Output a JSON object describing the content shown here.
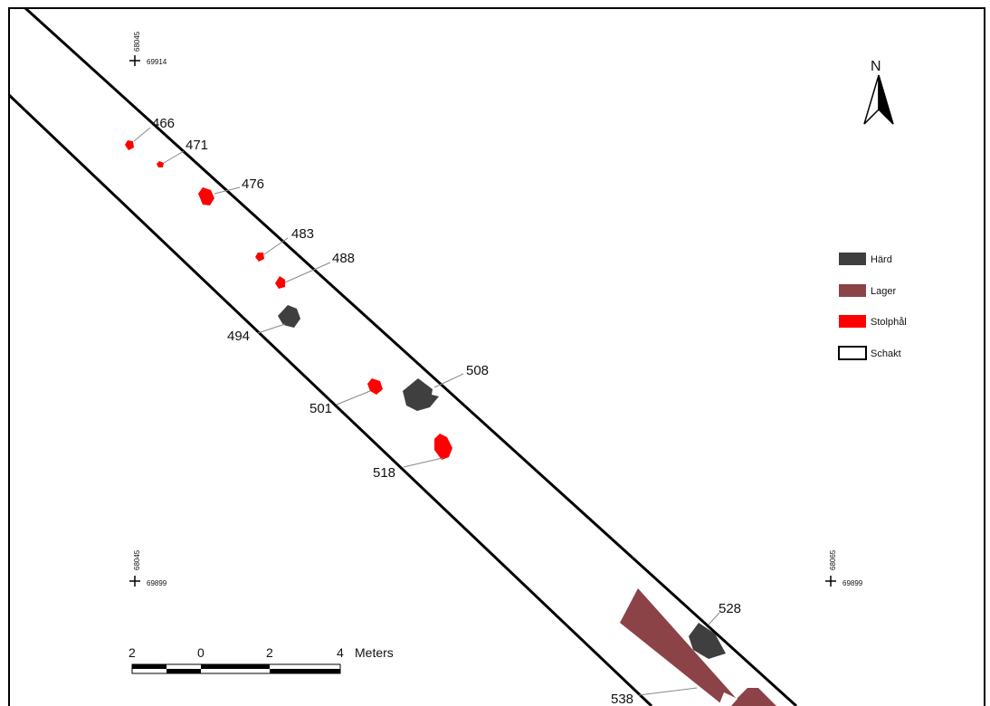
{
  "colors": {
    "hard": "#3f3f3f",
    "lager": "#8b4348",
    "stolphal": "#ff0000",
    "outline": "#000000",
    "background": "#ffffff"
  },
  "north": {
    "label": "N",
    "icon": "north-arrow-icon"
  },
  "coordinates": [
    {
      "easting": "68045",
      "northing": "69914"
    },
    {
      "easting": "68045",
      "northing": "69899"
    },
    {
      "easting": "68065",
      "northing": "69899"
    }
  ],
  "features": [
    {
      "id": "466",
      "type": "Stolphål"
    },
    {
      "id": "471",
      "type": "Stolphål"
    },
    {
      "id": "476",
      "type": "Stolphål"
    },
    {
      "id": "483",
      "type": "Stolphål"
    },
    {
      "id": "488",
      "type": "Stolphål"
    },
    {
      "id": "494",
      "type": "Härd"
    },
    {
      "id": "501",
      "type": "Stolphål"
    },
    {
      "id": "508",
      "type": "Härd"
    },
    {
      "id": "518",
      "type": "Stolphål"
    },
    {
      "id": "528",
      "type": "Härd"
    },
    {
      "id": "538",
      "type": "Lager"
    }
  ],
  "legend": {
    "items": [
      {
        "label": "Härd",
        "color": "#3f3f3f"
      },
      {
        "label": "Lager",
        "color": "#8b4348"
      },
      {
        "label": "Stolphål",
        "color": "#ff0000"
      },
      {
        "label": "Schakt",
        "color": "#ffffff"
      }
    ]
  },
  "scale_bar": {
    "ticks": [
      "2",
      "0",
      "2",
      "4"
    ],
    "unit": "Meters"
  }
}
